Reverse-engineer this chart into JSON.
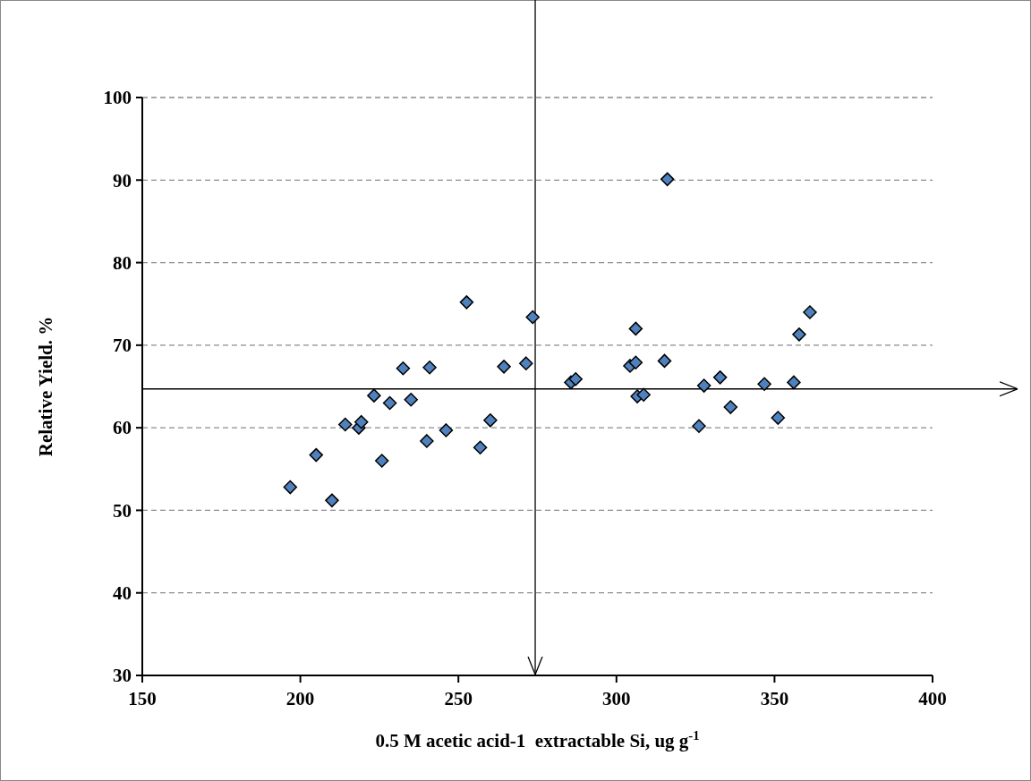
{
  "chart_data": {
    "type": "scatter",
    "xlabel": "0.5 M acetic acid-1  extractable Si, ug g$^{-1}$",
    "ylabel": "Relative Yield. %",
    "xlim": [
      150,
      400
    ],
    "xticks": [
      150,
      200,
      250,
      300,
      350,
      400
    ],
    "ylim": [
      30,
      100
    ],
    "yticks": [
      30,
      40,
      50,
      60,
      70,
      80,
      90,
      100
    ],
    "grid": "y",
    "marker": "diamond",
    "ref_lines": [
      {
        "axis": "x",
        "value": 274.3,
        "color": "#000000"
      },
      {
        "axis": "y",
        "value": 64.7,
        "color": "#000000"
      }
    ],
    "series": [
      {
        "color": "#4f81bd",
        "x": [
          196.8,
          205.0,
          210.0,
          214.2,
          218.5,
          219.3,
          223.3,
          225.8,
          228.3,
          232.5,
          235.0,
          240.0,
          240.9,
          246.1,
          252.6,
          256.9,
          260.1,
          264.4,
          271.4,
          273.5,
          285.6,
          287.1,
          304.3,
          306.1,
          306.1,
          306.6,
          308.6,
          315.2,
          316.1,
          326.1,
          327.7,
          332.8,
          336.1,
          346.8,
          351.1,
          356.1,
          357.8,
          361.2
        ],
        "values": [
          52.8,
          56.7,
          51.2,
          60.4,
          60.0,
          60.7,
          63.9,
          56.0,
          63.0,
          67.2,
          63.4,
          58.4,
          67.3,
          59.7,
          75.2,
          57.6,
          60.9,
          67.4,
          67.8,
          73.4,
          65.5,
          65.9,
          67.5,
          72.0,
          67.9,
          63.8,
          64.0,
          68.1,
          90.1,
          60.2,
          65.1,
          66.1,
          62.5,
          65.3,
          61.2,
          65.5,
          71.3,
          74.0
        ]
      }
    ]
  }
}
